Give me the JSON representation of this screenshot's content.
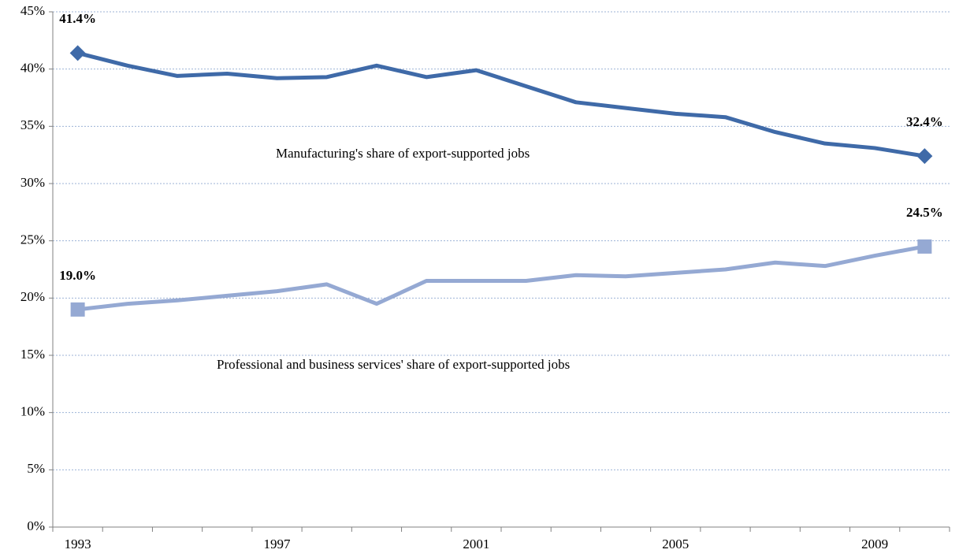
{
  "chart_data": {
    "type": "line",
    "categories": [
      "1993",
      null,
      null,
      null,
      "1997",
      null,
      null,
      null,
      "2001",
      null,
      null,
      null,
      "2005",
      null,
      null,
      null,
      "2009",
      null
    ],
    "series": [
      {
        "name": "Manufacturing's share of export-supported jobs",
        "color": "#3f6aa8",
        "marker": "diamond",
        "values": [
          41.4,
          40.3,
          39.4,
          39.6,
          39.2,
          39.3,
          40.3,
          39.3,
          39.9,
          38.5,
          37.1,
          36.6,
          36.1,
          35.8,
          34.5,
          33.5,
          33.1,
          32.4
        ],
        "value_labels": [
          "41.4%",
          null,
          null,
          null,
          null,
          null,
          null,
          null,
          null,
          null,
          null,
          null,
          null,
          null,
          null,
          null,
          null,
          "32.4%"
        ]
      },
      {
        "name": "Professional and business services' share of export-supported jobs",
        "color": "#95a9d3",
        "marker": "square",
        "values": [
          19.0,
          19.5,
          19.8,
          20.2,
          20.6,
          21.2,
          19.5,
          21.5,
          21.5,
          21.5,
          22.0,
          21.9,
          22.2,
          22.5,
          23.1,
          22.8,
          23.7,
          24.5
        ],
        "value_labels": [
          "19.0%",
          null,
          null,
          null,
          null,
          null,
          null,
          null,
          null,
          null,
          null,
          null,
          null,
          null,
          null,
          null,
          null,
          "24.5%"
        ]
      }
    ],
    "ylim": [
      0,
      45
    ],
    "yticks": [
      {
        "value": 0,
        "label": "0%"
      },
      {
        "value": 5,
        "label": "5%"
      },
      {
        "value": 10,
        "label": "10%"
      },
      {
        "value": 15,
        "label": "15%"
      },
      {
        "value": 20,
        "label": "20%"
      },
      {
        "value": 25,
        "label": "25%"
      },
      {
        "value": 30,
        "label": "30%"
      },
      {
        "value": 35,
        "label": "35%"
      },
      {
        "value": 40,
        "label": "40%"
      },
      {
        "value": 45,
        "label": "45%"
      }
    ],
    "grid": true
  }
}
